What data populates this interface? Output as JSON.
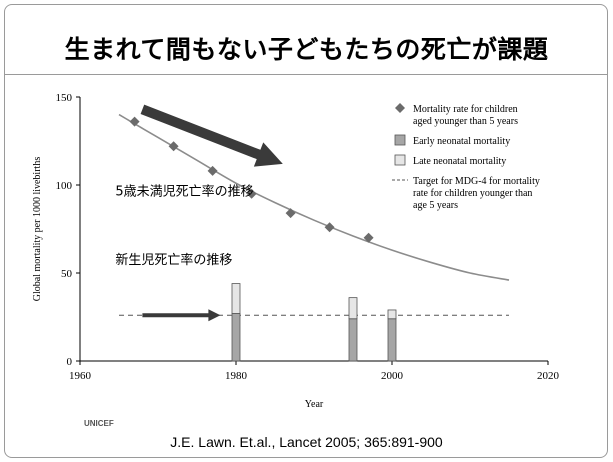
{
  "slide": {
    "title": "生まれて間もない子どもたちの死亡が課題",
    "logo_text": "UNICEF",
    "citation": "J.E. Lawn. Et.al., Lancet 2005; 365:891-900"
  },
  "chart_data": {
    "type": "line",
    "title": "",
    "xlabel": "Year",
    "ylabel": "Global mortality per 1000 livebirths",
    "xlim": [
      1960,
      2020
    ],
    "ylim": [
      0,
      150
    ],
    "x_ticks": [
      1960,
      1980,
      2000,
      2020
    ],
    "y_ticks": [
      0,
      50,
      100,
      150
    ],
    "grid": false,
    "legend_position": "top-right",
    "legend": [
      {
        "label_lines": [
          "Mortality rate for children",
          "aged younger than 5 years"
        ],
        "marker": "diamond"
      },
      {
        "label_lines": [
          "Early neonatal mortality"
        ],
        "marker": "dark-bar"
      },
      {
        "label_lines": [
          "Late neonatal mortality"
        ],
        "marker": "light-bar"
      },
      {
        "label_lines": [
          "Target for MDG-4 for mortality",
          "rate for children younger than",
          "age 5 years"
        ],
        "marker": "dashed-line"
      }
    ],
    "series": [
      {
        "name": "Mortality rate for children aged younger than 5 years",
        "kind": "points",
        "x": [
          1967,
          1972,
          1977,
          1982,
          1987,
          1992,
          1997
        ],
        "y": [
          136,
          122,
          108,
          95,
          84,
          76,
          70
        ]
      },
      {
        "name": "",
        "kind": "trend-curve",
        "x": [
          1965,
          1970,
          1975,
          1980,
          1985,
          1990,
          1995,
          2000,
          2005,
          2010,
          2015
        ],
        "y": [
          140,
          127,
          114,
          101,
          90,
          80,
          71,
          63,
          56,
          50,
          46
        ]
      },
      {
        "name": "Early neonatal mortality",
        "kind": "bar",
        "x": [
          1980,
          1995,
          2000
        ],
        "y": [
          27,
          24,
          24
        ]
      },
      {
        "name": "Late neonatal mortality",
        "kind": "bar",
        "x": [
          1980,
          1995,
          2000
        ],
        "y": [
          17,
          12,
          5
        ]
      },
      {
        "name": "Target for MDG-4 for mortality rate for children younger than age 5 years",
        "kind": "dashed-line",
        "x": [
          1965,
          2015
        ],
        "y": [
          26,
          26
        ]
      }
    ],
    "annotations": [
      {
        "text": "5歳未満児死亡率の推移",
        "x": 1963,
        "y": 94
      },
      {
        "text": "新生児死亡率の推移",
        "x": 1963,
        "y": 55
      }
    ],
    "arrows": [
      {
        "from": [
          1968,
          143
        ],
        "to": [
          1986,
          112
        ],
        "color": "#3a3a3a",
        "style": "fat"
      },
      {
        "from": [
          1968,
          26
        ],
        "to": [
          1978,
          26
        ],
        "color": "#3a3a3a",
        "style": "thin"
      }
    ],
    "colors": {
      "curve": "#8c8c8c",
      "marker": "#6b6b6b",
      "early_bar": "#a6a6a6",
      "late_bar": "#e6e6e6",
      "target_line": "#555555",
      "arrow": "#3a3a3a"
    }
  }
}
